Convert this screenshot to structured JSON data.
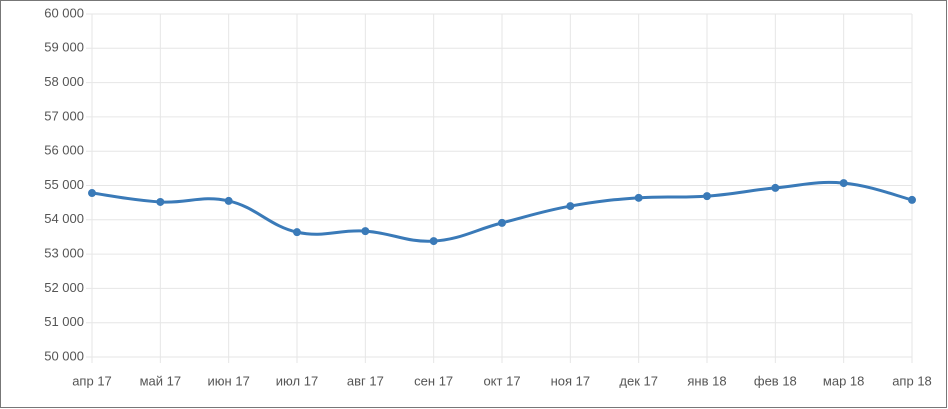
{
  "chart_data": {
    "type": "line",
    "categories": [
      "апр 17",
      "май 17",
      "июн 17",
      "июл 17",
      "авг 17",
      "сен 17",
      "окт 17",
      "ноя 17",
      "дек 17",
      "янв 18",
      "фев 18",
      "мар 18",
      "апр 18"
    ],
    "series": [
      {
        "name": null,
        "color": "#3a7ab8",
        "values": [
          54780,
          54520,
          54550,
          53640,
          53670,
          53380,
          53910,
          54400,
          54640,
          54690,
          54930,
          55070,
          54580
        ]
      }
    ],
    "ylim": [
      50000,
      60000
    ],
    "yticks": [
      {
        "value": 50000,
        "label": "50 000"
      },
      {
        "value": 51000,
        "label": "51 000"
      },
      {
        "value": 52000,
        "label": "52 000"
      },
      {
        "value": 53000,
        "label": "53 000"
      },
      {
        "value": 54000,
        "label": "54 000"
      },
      {
        "value": 55000,
        "label": "55 000"
      },
      {
        "value": 56000,
        "label": "56 000"
      },
      {
        "value": 57000,
        "label": "57 000"
      },
      {
        "value": 58000,
        "label": "58 000"
      },
      {
        "value": 59000,
        "label": "59 000"
      },
      {
        "value": 60000,
        "label": "60 000"
      }
    ],
    "grid": true
  }
}
